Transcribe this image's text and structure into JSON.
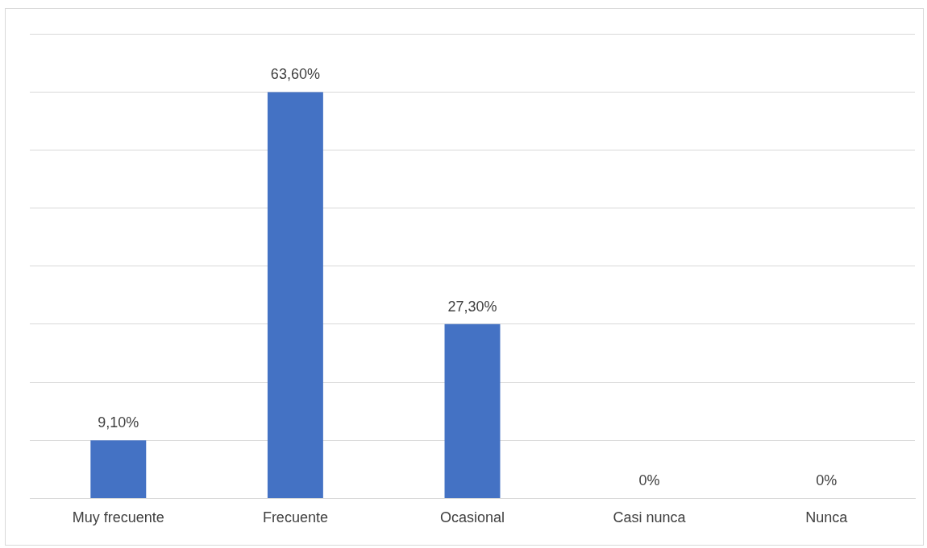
{
  "chart_data": {
    "type": "bar",
    "categories": [
      "Muy frecuente",
      "Frecuente",
      "Ocasional",
      "Casi nunca",
      "Nunca"
    ],
    "values": [
      9.1,
      63.6,
      27.3,
      0,
      0
    ],
    "value_labels": [
      "9,10%",
      "63,60%",
      "27,30%",
      "0%",
      "0%"
    ],
    "color": "#4472c4",
    "ylim": [
      0,
      72.73
    ],
    "yticks": [
      {
        "value": 0,
        "label": null
      },
      {
        "value": 9.09,
        "label": null
      },
      {
        "value": 18.18,
        "label": null
      },
      {
        "value": 27.27,
        "label": null
      },
      {
        "value": 36.36,
        "label": null
      },
      {
        "value": 45.45,
        "label": null
      },
      {
        "value": 54.55,
        "label": null
      },
      {
        "value": 63.64,
        "label": null
      },
      {
        "value": 72.73,
        "label": null
      }
    ],
    "grid": "y",
    "tick_labels": "x",
    "legend": false
  }
}
